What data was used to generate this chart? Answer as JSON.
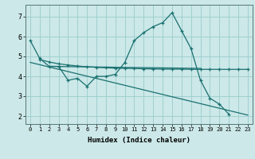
{
  "xlabel": "Humidex (Indice chaleur)",
  "background_color": "#cce8e8",
  "grid_color": "#99cccc",
  "line_color": "#1a7070",
  "line1_x": [
    0,
    1,
    2,
    3,
    4,
    5,
    6,
    7,
    8,
    9,
    10,
    11,
    12,
    13,
    14,
    15,
    16,
    17,
    18,
    19,
    20,
    21
  ],
  "line1_y": [
    5.8,
    4.9,
    4.5,
    4.5,
    3.8,
    3.9,
    3.5,
    4.0,
    4.0,
    4.1,
    4.7,
    5.8,
    6.2,
    6.5,
    6.7,
    7.2,
    6.3,
    5.4,
    3.8,
    2.9,
    2.6,
    2.1
  ],
  "line2_x": [
    1,
    2,
    3,
    4,
    5,
    6,
    7,
    8,
    9,
    10,
    11,
    12,
    13,
    14,
    15,
    16,
    17,
    18,
    19,
    20,
    21,
    22,
    23
  ],
  "line2_y": [
    4.85,
    4.72,
    4.63,
    4.57,
    4.52,
    4.48,
    4.45,
    4.43,
    4.41,
    4.4,
    4.39,
    4.38,
    4.37,
    4.36,
    4.36,
    4.36,
    4.35,
    4.35,
    4.35,
    4.35,
    4.35,
    4.35,
    4.35
  ],
  "line3_x": [
    0,
    23
  ],
  "line3_y": [
    4.7,
    2.05
  ],
  "line4_x": [
    2,
    18
  ],
  "line4_y": [
    4.5,
    4.4
  ],
  "ylim": [
    1.6,
    7.6
  ],
  "xlim": [
    -0.5,
    23.5
  ],
  "yticks": [
    2,
    3,
    4,
    5,
    6,
    7
  ],
  "xticks": [
    0,
    1,
    2,
    3,
    4,
    5,
    6,
    7,
    8,
    9,
    10,
    11,
    12,
    13,
    14,
    15,
    16,
    17,
    18,
    19,
    20,
    21,
    22,
    23
  ]
}
